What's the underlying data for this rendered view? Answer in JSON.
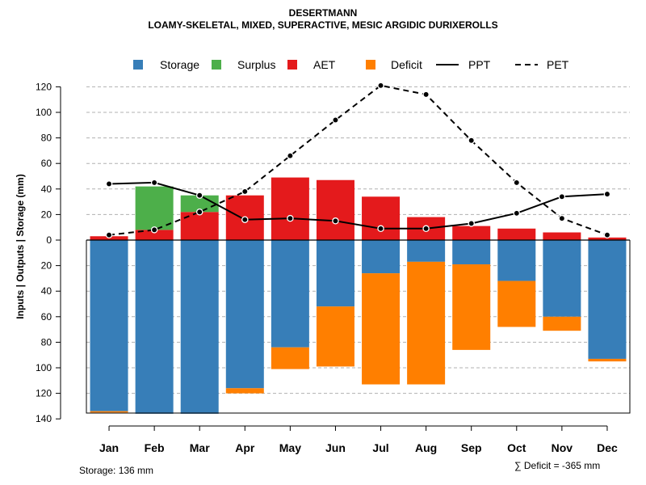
{
  "chart_data": {
    "type": "bar",
    "title": "DESERTMANN",
    "subtitle": "LOAMY-SKELETAL, MIXED, SUPERACTIVE, MESIC ARGIDIC DURIXEROLLS",
    "ylabel": "Inputs | Outputs | Storage    (mm)",
    "xlabel": "",
    "categories": [
      "Jan",
      "Feb",
      "Mar",
      "Apr",
      "May",
      "Jun",
      "Jul",
      "Aug",
      "Sep",
      "Oct",
      "Nov",
      "Dec"
    ],
    "ylim": [
      -140,
      130
    ],
    "yticks": [
      120,
      100,
      80,
      60,
      40,
      20,
      0,
      -20,
      -40,
      -60,
      -80,
      -100,
      -120,
      -140
    ],
    "ytick_labels": [
      "120",
      "100",
      "80",
      "60",
      "40",
      "20",
      "0",
      "20",
      "40",
      "60",
      "80",
      "100",
      "120",
      "140"
    ],
    "grid": true,
    "legend_position": "top",
    "legend": [
      {
        "key": "storage",
        "label": "Storage",
        "kind": "box"
      },
      {
        "key": "surplus",
        "label": "Surplus",
        "kind": "box"
      },
      {
        "key": "aet",
        "label": "AET",
        "kind": "box"
      },
      {
        "key": "deficit",
        "label": "Deficit",
        "kind": "box"
      },
      {
        "key": "ppt",
        "label": "PPT",
        "kind": "solid"
      },
      {
        "key": "pet",
        "label": "PET",
        "kind": "dashed"
      }
    ],
    "colors": {
      "storage": "#377EB8",
      "surplus": "#4DAF4A",
      "aet": "#E41A1C",
      "deficit": "#FF7F00",
      "line": "#000000",
      "grid": "#b0b0b0"
    },
    "series": [
      {
        "name": "AET",
        "key": "aet",
        "values": [
          3,
          8,
          22,
          35,
          49,
          47,
          34,
          18,
          11,
          9,
          6,
          2
        ]
      },
      {
        "name": "Surplus",
        "key": "surplus",
        "values": [
          0,
          34,
          13,
          0,
          0,
          0,
          0,
          0,
          0,
          0,
          0,
          0
        ]
      },
      {
        "name": "Storage",
        "key": "storage",
        "values": [
          134,
          136,
          136,
          116,
          84,
          52,
          26,
          17,
          19,
          32,
          60,
          93
        ]
      },
      {
        "name": "Deficit",
        "key": "deficit",
        "values": [
          1,
          0,
          0,
          4,
          17,
          47,
          87,
          96,
          67,
          36,
          11,
          2
        ]
      },
      {
        "name": "PPT",
        "key": "ppt",
        "values": [
          44,
          45,
          35,
          16,
          17,
          15,
          9,
          9,
          13,
          21,
          34,
          36
        ]
      },
      {
        "name": "PET",
        "key": "pet",
        "values": [
          4,
          8,
          22,
          38,
          66,
          94,
          121,
          114,
          78,
          45,
          17,
          4
        ]
      }
    ],
    "annotations": {
      "storage_total": "Storage: 136 mm",
      "deficit_total": "∑ Deficit = -365 mm"
    }
  }
}
